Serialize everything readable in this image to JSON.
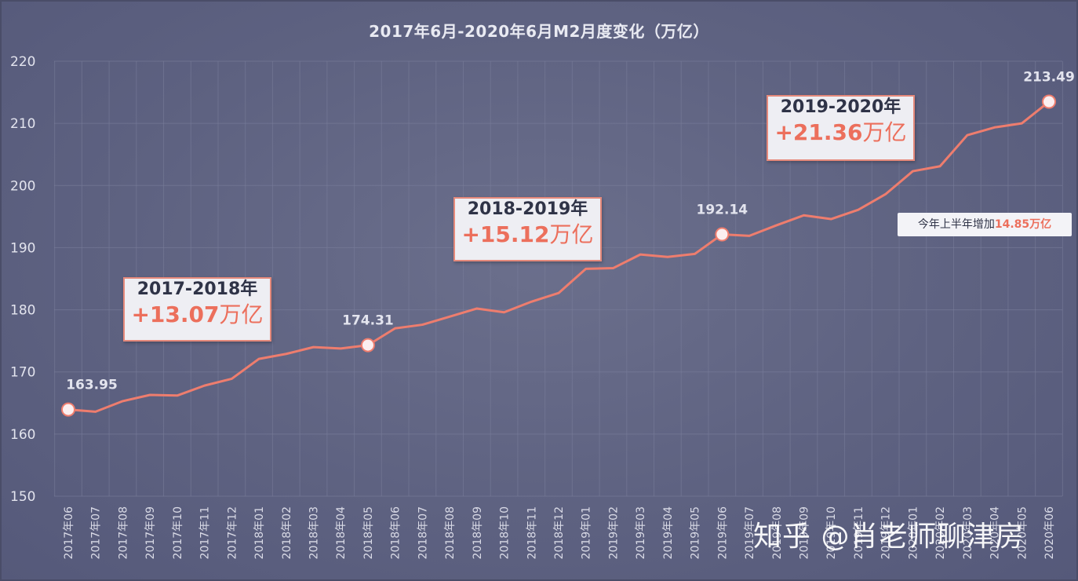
{
  "chart_data": {
    "type": "line",
    "title": "2017年6月-2020年6月M2月度变化（万亿）",
    "xlabel": "",
    "ylabel": "",
    "ylim": [
      150,
      220
    ],
    "y_ticks": [
      150,
      160,
      170,
      180,
      190,
      200,
      210,
      220
    ],
    "grid": true,
    "line_color": "#ee7d6e",
    "categories": [
      "2017年06",
      "2017年07",
      "2017年08",
      "2017年09",
      "2017年10",
      "2017年11",
      "2017年12",
      "2018年01",
      "2018年02",
      "2018年03",
      "2018年04",
      "2018年05",
      "2018年06",
      "2018年07",
      "2018年08",
      "2018年09",
      "2018年10",
      "2018年11",
      "2018年12",
      "2019年01",
      "2019年02",
      "2019年03",
      "2019年04",
      "2019年05",
      "2019年06",
      "2019年07",
      "2019年08",
      "2019年09",
      "2019年10",
      "2019年11",
      "2019年12",
      "2020年01",
      "2020年02",
      "2020年03",
      "2020年04",
      "2020年05",
      "2020年06"
    ],
    "series": [
      {
        "values": [
          163.95,
          163.6,
          165.3,
          166.3,
          166.2,
          167.8,
          168.9,
          172.1,
          172.9,
          173.99,
          173.77,
          174.31,
          177.02,
          177.6,
          178.9,
          180.2,
          179.6,
          181.3,
          182.7,
          186.6,
          186.7,
          188.9,
          188.5,
          189.0,
          192.14,
          191.9,
          193.6,
          195.2,
          194.6,
          196.1,
          198.6,
          202.3,
          203.1,
          208.1,
          209.35,
          210.0,
          213.49
        ]
      }
    ],
    "point_labels": [
      {
        "index": 0,
        "text": "163.95"
      },
      {
        "index": 11,
        "text": "174.31"
      },
      {
        "index": 24,
        "text": "192.14"
      },
      {
        "index": 36,
        "text": "213.49"
      }
    ],
    "annotations": [
      {
        "year_range": "2017-2018年",
        "increase": "+13.07",
        "unit": "万亿"
      },
      {
        "year_range": "2018-2019年",
        "increase": "+15.12",
        "unit": "万亿"
      },
      {
        "year_range": "2019-2020年",
        "increase": "+21.36",
        "unit": "万亿"
      }
    ],
    "note": {
      "text": "今年上半年增加",
      "value": "14.85万亿"
    }
  },
  "watermark": "知乎 @肖老师聊津房"
}
